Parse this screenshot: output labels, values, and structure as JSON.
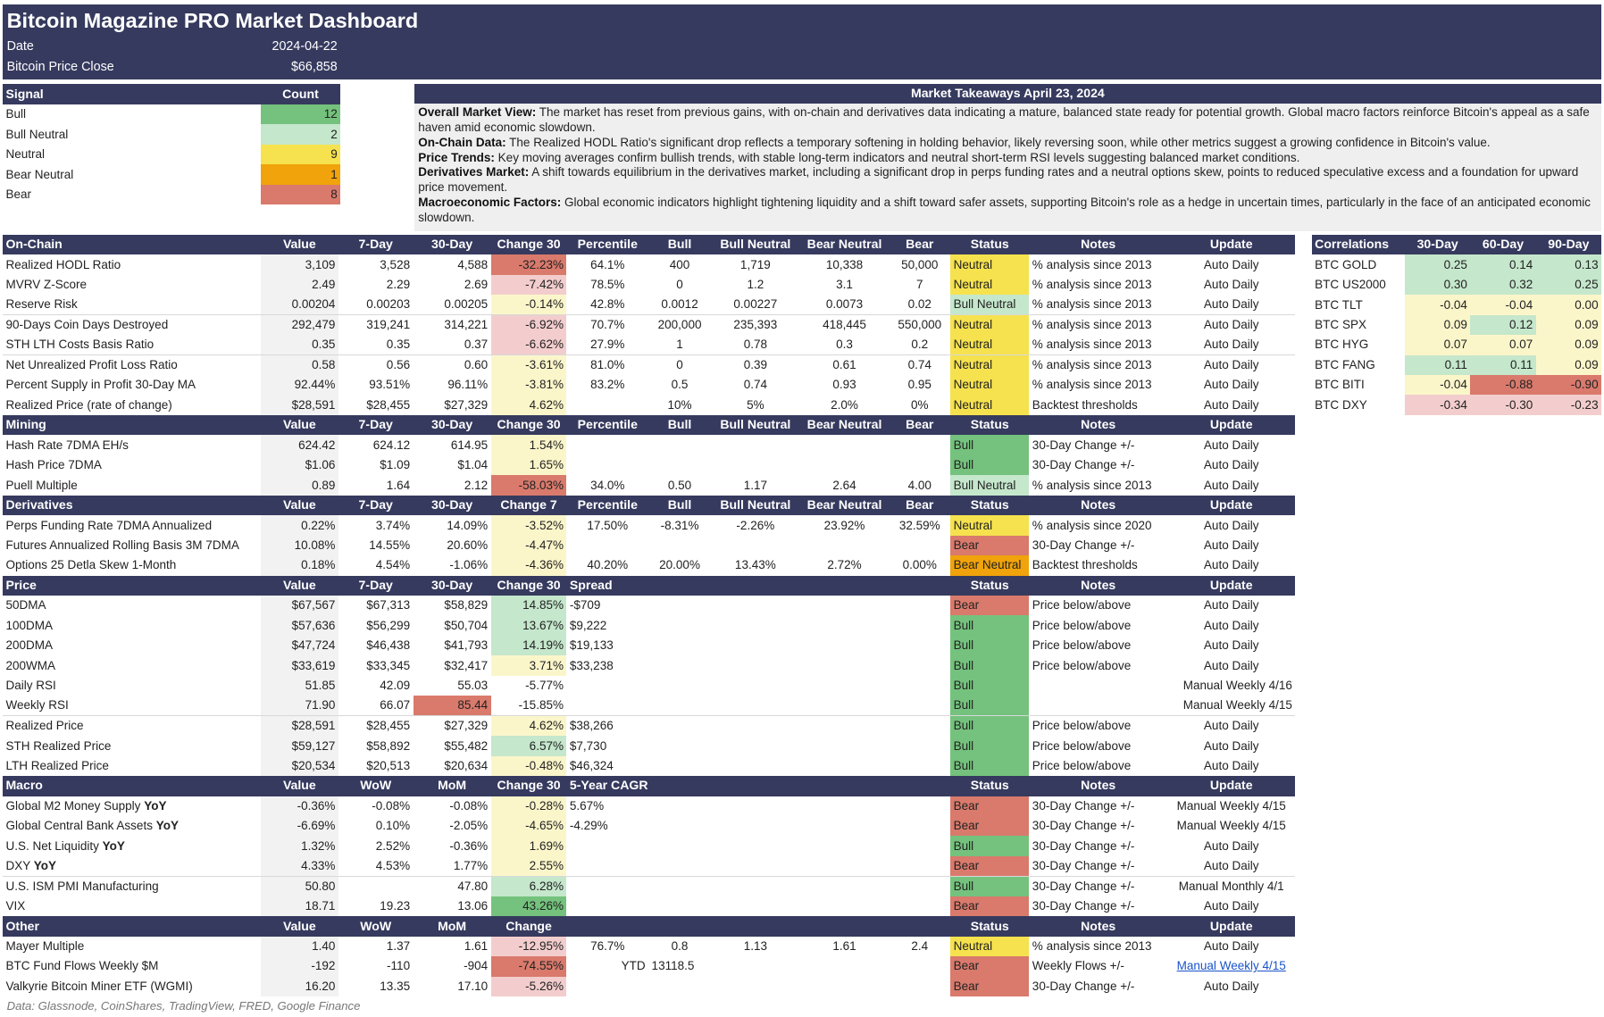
{
  "header": {
    "title": "Bitcoin Magazine PRO Market Dashboard",
    "date_label": "Date",
    "date_value": "2024-04-22",
    "price_label": "Bitcoin Price Close",
    "price_value": "$66,858"
  },
  "signals": {
    "headers": [
      "Signal",
      "Count"
    ],
    "rows": [
      {
        "label": "Bull",
        "count": "12",
        "color": "#74c27d"
      },
      {
        "label": "Bull Neutral",
        "count": "2",
        "color": "#c5e7cc"
      },
      {
        "label": "Neutral",
        "count": "9",
        "color": "#f5e24e"
      },
      {
        "label": "Bear Neutral",
        "count": "1",
        "color": "#f0a30a"
      },
      {
        "label": "Bear",
        "count": "8",
        "color": "#d97a6c"
      }
    ]
  },
  "takeaways": {
    "title": "Market Takeaways April 23, 2024",
    "paragraphs": [
      {
        "head": "Overall Market View:",
        "text": " The market has reset from previous gains, with on-chain and derivatives data indicating a mature, balanced state ready for potential growth. Global macro factors reinforce Bitcoin's appeal as a safe haven amid economic slowdown."
      },
      {
        "head": "On-Chain Data:",
        "text": " The Realized HODL Ratio's significant drop reflects a temporary softening in holding behavior, likely reversing soon, while other metrics suggest a growing confidence in Bitcoin's value."
      },
      {
        "head": "Price Trends:",
        "text": " Key moving averages confirm bullish trends, with stable long-term indicators and neutral short-term RSI levels suggesting balanced market conditions."
      },
      {
        "head": "Derivatives Market:",
        "text": " A shift towards equilibrium in the derivatives market, including a significant drop in perps funding rates and a neutral options skew, points to reduced speculative excess and a foundation for upward price movement."
      },
      {
        "head": "Macroeconomic Factors:",
        "text": " Global economic indicators highlight tightening liquidity and a shift toward safer assets, supporting Bitcoin's role as a hedge in uncertain times, particularly in the face of an anticipated economic slowdown."
      }
    ]
  },
  "sections": [
    {
      "headers": [
        "On-Chain",
        "Value",
        "7-Day",
        "30-Day",
        "Change 30",
        "Percentile",
        "Bull",
        "Bull Neutral",
        "Bear Neutral",
        "Bear",
        "Status",
        "Notes",
        "Update"
      ],
      "rows": [
        {
          "m": "Realized HODL Ratio",
          "v": "3,109",
          "d7": "3,528",
          "d30": "4,588",
          "ch": "-32.23%",
          "chc": "br",
          "a": "64.1%",
          "b": "400",
          "c": "1,719",
          "d": "10,338",
          "e": "50,000",
          "st": "Neutral",
          "stc": "nt",
          "n": "% analysis since 2013",
          "u": "Auto Daily"
        },
        {
          "m": "MVRV Z-Score",
          "v": "2.49",
          "d7": "2.29",
          "d30": "2.69",
          "ch": "-7.42%",
          "chc": "bp",
          "a": "78.5%",
          "b": "0",
          "c": "1.2",
          "d": "3.1",
          "e": "7",
          "st": "Neutral",
          "stc": "nt",
          "n": "% analysis since 2013",
          "u": "Auto Daily"
        },
        {
          "m": "Reserve Risk",
          "v": "0.00204",
          "d7": "0.00203",
          "d30": "0.00205",
          "ch": "-0.14%",
          "chc": "ny",
          "a": "42.8%",
          "b": "0.0012",
          "c": "0.00227",
          "d": "0.0073",
          "e": "0.02",
          "st": "Bull Neutral",
          "stc": "bn",
          "n": "% analysis since 2013",
          "u": "Auto Daily"
        },
        {
          "m": "90-Days Coin Days Destroyed",
          "v": "292,479",
          "d7": "319,241",
          "d30": "314,221",
          "ch": "-6.92%",
          "chc": "bp",
          "a": "70.7%",
          "b": "200,000",
          "c": "235,393",
          "d": "418,445",
          "e": "550,000",
          "st": "Neutral",
          "stc": "nt",
          "n": "% analysis since 2013",
          "u": "Auto Daily",
          "sep": true
        },
        {
          "m": "STH LTH Costs Basis Ratio",
          "v": "0.35",
          "d7": "0.35",
          "d30": "0.37",
          "ch": "-6.62%",
          "chc": "bp",
          "a": "27.9%",
          "b": "1",
          "c": "0.78",
          "d": "0.3",
          "e": "0.2",
          "st": "Neutral",
          "stc": "nt",
          "n": "% analysis since 2013",
          "u": "Auto Daily"
        },
        {
          "m": "Net Unrealized Profit Loss Ratio",
          "v": "0.58",
          "d7": "0.56",
          "d30": "0.60",
          "ch": "-3.61%",
          "chc": "ny",
          "a": "81.0%",
          "b": "0",
          "c": "0.39",
          "d": "0.61",
          "e": "0.74",
          "st": "Neutral",
          "stc": "nt",
          "n": "% analysis since 2013",
          "u": "Auto Daily",
          "sep": true
        },
        {
          "m": "Percent Supply in Profit 30-Day MA",
          "v": "92.44%",
          "d7": "93.51%",
          "d30": "96.11%",
          "ch": "-3.81%",
          "chc": "ny",
          "a": "83.2%",
          "b": "0.5",
          "c": "0.74",
          "d": "0.93",
          "e": "0.95",
          "st": "Neutral",
          "stc": "nt",
          "n": "% analysis since 2013",
          "u": "Auto Daily"
        },
        {
          "m": "Realized Price (rate of change)",
          "v": "$28,591",
          "d7": "$28,455",
          "d30": "$27,329",
          "ch": "4.62%",
          "chc": "ny",
          "a": "",
          "b": "10%",
          "c": "5%",
          "d": "2.0%",
          "e": "0%",
          "st": "Neutral",
          "stc": "nt",
          "n": "Backtest thresholds",
          "u": "Auto Daily"
        }
      ]
    },
    {
      "headers": [
        "Mining",
        "Value",
        "7-Day",
        "30-Day",
        "Change 30",
        "Percentile",
        "Bull",
        "Bull Neutral",
        "Bear Neutral",
        "Bear",
        "Status",
        "Notes",
        "Update"
      ],
      "rows": [
        {
          "m": "Hash Rate 7DMA EH/s",
          "v": "624.42",
          "d7": "624.12",
          "d30": "614.95",
          "ch": "1.54%",
          "chc": "ny",
          "a": "",
          "b": "",
          "c": "",
          "d": "",
          "e": "",
          "st": "Bull",
          "stc": "bl",
          "n": "30-Day Change +/-",
          "u": "Auto Daily"
        },
        {
          "m": "Hash Price 7DMA",
          "v": "$1.06",
          "d7": "$1.09",
          "d30": "$1.04",
          "ch": "1.65%",
          "chc": "ny",
          "a": "",
          "b": "",
          "c": "",
          "d": "",
          "e": "",
          "st": "Bull",
          "stc": "bl",
          "n": "30-Day Change +/-",
          "u": "Auto Daily"
        },
        {
          "m": "Puell Multiple",
          "v": "0.89",
          "d7": "1.64",
          "d30": "2.12",
          "ch": "-58.03%",
          "chc": "br",
          "a": "34.0%",
          "b": "0.50",
          "c": "1.17",
          "d": "2.64",
          "e": "4.00",
          "st": "Bull Neutral",
          "stc": "bn",
          "n": "% analysis since 2013",
          "u": "Auto Daily"
        }
      ]
    },
    {
      "headers": [
        "Derivatives",
        "Value",
        "7-Day",
        "30-Day",
        "Change 7",
        "Percentile",
        "Bull",
        "Bull Neutral",
        "Bear Neutral",
        "Bear",
        "Status",
        "Notes",
        "Update"
      ],
      "rows": [
        {
          "m": "Perps Funding Rate 7DMA Annualized",
          "v": "0.22%",
          "d7": "3.74%",
          "d30": "14.09%",
          "ch": "-3.52%",
          "chc": "ny",
          "a": "17.50%",
          "b": "-8.31%",
          "c": "-2.26%",
          "d": "23.92%",
          "e": "32.59%",
          "st": "Neutral",
          "stc": "nt",
          "n": "% analysis since 2020",
          "u": "Auto Daily"
        },
        {
          "m": "Futures Annualized Rolling Basis 3M 7DMA",
          "v": "10.08%",
          "d7": "14.55%",
          "d30": "20.60%",
          "ch": "-4.47%",
          "chc": "ny",
          "a": "",
          "b": "",
          "c": "",
          "d": "",
          "e": "",
          "st": "Bear",
          "stc": "br",
          "n": "30-Day Change +/-",
          "u": "Auto Daily"
        },
        {
          "m": "Options 25 Detla Skew 1-Month",
          "v": "0.18%",
          "d7": "4.54%",
          "d30": "-1.06%",
          "ch": "-4.36%",
          "chc": "ny",
          "a": "40.20%",
          "b": "20.00%",
          "c": "13.43%",
          "d": "2.72%",
          "e": "0.00%",
          "st": "Bear Neutral",
          "stc": "bo",
          "n": "Backtest thresholds",
          "u": "Auto Daily"
        }
      ]
    },
    {
      "headers": [
        "Price",
        "Value",
        "7-Day",
        "30-Day",
        "Change 30",
        "Spread",
        "",
        "",
        "",
        "",
        "Status",
        "Notes",
        "Update"
      ],
      "rows": [
        {
          "m": "50DMA",
          "v": "$67,567",
          "d7": "$67,313",
          "d30": "$58,829",
          "ch": "14.85%",
          "chc": "bn",
          "a": "-$709",
          "b": "",
          "c": "",
          "d": "",
          "e": "",
          "st": "Bear",
          "stc": "br",
          "n": "Price below/above",
          "u": "Auto Daily"
        },
        {
          "m": "100DMA",
          "v": "$57,636",
          "d7": "$56,299",
          "d30": "$50,704",
          "ch": "13.67%",
          "chc": "bn",
          "a": "$9,222",
          "b": "",
          "c": "",
          "d": "",
          "e": "",
          "st": "Bull",
          "stc": "bl",
          "n": "Price below/above",
          "u": "Auto Daily"
        },
        {
          "m": "200DMA",
          "v": "$47,724",
          "d7": "$46,438",
          "d30": "$41,793",
          "ch": "14.19%",
          "chc": "bn",
          "a": "$19,133",
          "b": "",
          "c": "",
          "d": "",
          "e": "",
          "st": "Bull",
          "stc": "bl",
          "n": "Price below/above",
          "u": "Auto Daily"
        },
        {
          "m": "200WMA",
          "v": "$33,619",
          "d7": "$33,345",
          "d30": "$32,417",
          "ch": "3.71%",
          "chc": "ny",
          "a": "$33,238",
          "b": "",
          "c": "",
          "d": "",
          "e": "",
          "st": "Bull",
          "stc": "bl",
          "n": "Price below/above",
          "u": "Auto Daily"
        },
        {
          "m": "Daily RSI",
          "v": "51.85",
          "d7": "42.09",
          "d30": "55.03",
          "ch": "-5.77%",
          "chc": "",
          "a": "",
          "b": "",
          "c": "",
          "d": "",
          "e": "",
          "st": "Bull",
          "stc": "bl",
          "n": "",
          "u": "Manual Weekly 4/16",
          "ur": true
        },
        {
          "m": "Weekly RSI",
          "v": "71.90",
          "d7": "66.07",
          "d30": "85.44",
          "d30c": "br",
          "ch": "-15.85%",
          "chc": "",
          "a": "",
          "b": "",
          "c": "",
          "d": "",
          "e": "",
          "st": "Bull",
          "stc": "bl",
          "n": "",
          "u": "Manual Weekly 4/15",
          "ur": true
        },
        {
          "m": "Realized Price",
          "v": "$28,591",
          "d7": "$28,455",
          "d30": "$27,329",
          "ch": "4.62%",
          "chc": "ny",
          "a": "$38,266",
          "b": "",
          "c": "",
          "d": "",
          "e": "",
          "st": "Bull",
          "stc": "bl",
          "n": "Price below/above",
          "u": "Auto Daily",
          "sep": true
        },
        {
          "m": "STH Realized Price",
          "v": "$59,127",
          "d7": "$58,892",
          "d30": "$55,482",
          "ch": "6.57%",
          "chc": "bn",
          "a": "$7,730",
          "b": "",
          "c": "",
          "d": "",
          "e": "",
          "st": "Bull",
          "stc": "bl",
          "n": "Price below/above",
          "u": "Auto Daily"
        },
        {
          "m": "LTH Realized Price",
          "v": "$20,534",
          "d7": "$20,513",
          "d30": "$20,634",
          "ch": "-0.48%",
          "chc": "ny",
          "a": "$46,324",
          "b": "",
          "c": "",
          "d": "",
          "e": "",
          "st": "Bull",
          "stc": "bl",
          "n": "Price below/above",
          "u": "Auto Daily"
        }
      ]
    },
    {
      "headers": [
        "Macro",
        "Value",
        "WoW",
        "MoM",
        "Change 30",
        "5-Year CAGR",
        "",
        "",
        "",
        "",
        "Status",
        "Notes",
        "Update"
      ],
      "rows": [
        {
          "m": "Global M2 Money Supply ",
          "mb": "YoY",
          "v": "-0.36%",
          "d7": "-0.08%",
          "d30": "-0.08%",
          "ch": "-0.28%",
          "chc": "ny",
          "a": "5.67%",
          "b": "",
          "c": "",
          "d": "",
          "e": "",
          "st": "Bear",
          "stc": "br",
          "n": "30-Day Change +/-",
          "u": "Manual Weekly 4/15"
        },
        {
          "m": "Global Central Bank Assets ",
          "mb": "YoY",
          "v": "-6.69%",
          "d7": "0.10%",
          "d30": "-2.05%",
          "ch": "-4.65%",
          "chc": "ny",
          "a": "-4.29%",
          "b": "",
          "c": "",
          "d": "",
          "e": "",
          "st": "Bear",
          "stc": "br",
          "n": "30-Day Change +/-",
          "u": "Manual Weekly 4/15"
        },
        {
          "m": "U.S. Net Liquidity ",
          "mb": "YoY",
          "v": "1.32%",
          "d7": "2.52%",
          "d30": "-0.36%",
          "ch": "1.69%",
          "chc": "ny",
          "a": "",
          "b": "",
          "c": "",
          "d": "",
          "e": "",
          "st": "Bull",
          "stc": "bl",
          "n": "30-Day Change +/-",
          "u": "Auto Daily"
        },
        {
          "m": "DXY ",
          "mb": "YoY",
          "v": "4.33%",
          "d7": "4.53%",
          "d30": "1.77%",
          "ch": "2.55%",
          "chc": "ny",
          "a": "",
          "b": "",
          "c": "",
          "d": "",
          "e": "",
          "st": "Bear",
          "stc": "br",
          "n": "30-Day Change +/-",
          "u": "Auto Daily"
        },
        {
          "m": "U.S. ISM PMI Manufacturing",
          "v": "50.80",
          "d7": "",
          "d30": "47.80",
          "ch": "6.28%",
          "chc": "bn",
          "a": "",
          "b": "",
          "c": "",
          "d": "",
          "e": "",
          "st": "Bull",
          "stc": "bl",
          "n": "30-Day Change +/-",
          "u": "Manual Monthly 4/1",
          "sep": true
        },
        {
          "m": "VIX",
          "v": "18.71",
          "d7": "19.23",
          "d30": "13.06",
          "ch": "43.26%",
          "chc": "bl",
          "a": "",
          "b": "",
          "c": "",
          "d": "",
          "e": "",
          "st": "Bear",
          "stc": "br",
          "n": "30-Day Change +/-",
          "u": "Auto Daily"
        }
      ]
    },
    {
      "headers": [
        "Other",
        "Value",
        "WoW",
        "MoM",
        "Change",
        "",
        "",
        "",
        "",
        "",
        "Status",
        "Notes",
        "Update"
      ],
      "rows": [
        {
          "m": "Mayer Multiple",
          "v": "1.40",
          "d7": "1.37",
          "d30": "1.61",
          "ch": "-12.95%",
          "chc": "bp",
          "a": "76.7%",
          "b": "0.8",
          "c": "1.13",
          "d": "1.61",
          "e": "2.4",
          "st": "Neutral",
          "stc": "nt",
          "n": "% analysis since 2013",
          "u": "Auto Daily"
        },
        {
          "m": "BTC Fund Flows Weekly $M",
          "v": "-192",
          "d7": "-110",
          "d30": "-904",
          "ch": "-74.55%",
          "chc": "br",
          "a": "YTD",
          "b": "13118.5",
          "c": "",
          "d": "",
          "e": "",
          "st": "Bear",
          "stc": "br",
          "n": "Weekly Flows +/-",
          "u": "Manual Weekly 4/15",
          "link": true
        },
        {
          "m": "Valkyrie Bitcoin Miner ETF (WGMI)",
          "v": "16.20",
          "d7": "13.35",
          "d30": "17.10",
          "ch": "-5.26%",
          "chc": "bp",
          "a": "",
          "b": "",
          "c": "",
          "d": "",
          "e": "",
          "st": "Bear",
          "stc": "br",
          "n": "30-Day Change +/-",
          "u": "Auto Daily"
        }
      ]
    }
  ],
  "correlations": {
    "headers": [
      "Correlations",
      "30-Day",
      "60-Day",
      "90-Day"
    ],
    "rows": [
      {
        "label": "BTC GOLD",
        "v": [
          "0.25",
          "0.14",
          "0.13"
        ],
        "c": [
          "bn",
          "bn",
          "bn"
        ]
      },
      {
        "label": "BTC US2000",
        "v": [
          "0.30",
          "0.32",
          "0.25"
        ],
        "c": [
          "bn",
          "bn",
          "bn"
        ]
      },
      {
        "label": "BTC TLT",
        "v": [
          "-0.04",
          "-0.04",
          "0.00"
        ],
        "c": [
          "ny",
          "ny",
          "ny"
        ]
      },
      {
        "label": "BTC SPX",
        "v": [
          "0.09",
          "0.12",
          "0.09"
        ],
        "c": [
          "ny",
          "bn",
          "ny"
        ]
      },
      {
        "label": "BTC HYG",
        "v": [
          "0.07",
          "0.07",
          "0.09"
        ],
        "c": [
          "ny",
          "ny",
          "ny"
        ]
      },
      {
        "label": "BTC FANG",
        "v": [
          "0.11",
          "0.11",
          "0.09"
        ],
        "c": [
          "bn",
          "bn",
          "ny"
        ]
      },
      {
        "label": "BTC BITI",
        "v": [
          "-0.04",
          "-0.88",
          "-0.90"
        ],
        "c": [
          "ny",
          "br",
          "br"
        ]
      },
      {
        "label": "BTC DXY",
        "v": [
          "-0.34",
          "-0.30",
          "-0.23"
        ],
        "c": [
          "bp",
          "bp",
          "bp"
        ]
      }
    ]
  },
  "footer": "Data: Glassnode, CoinShares, TradingView, FRED, Google Finance"
}
